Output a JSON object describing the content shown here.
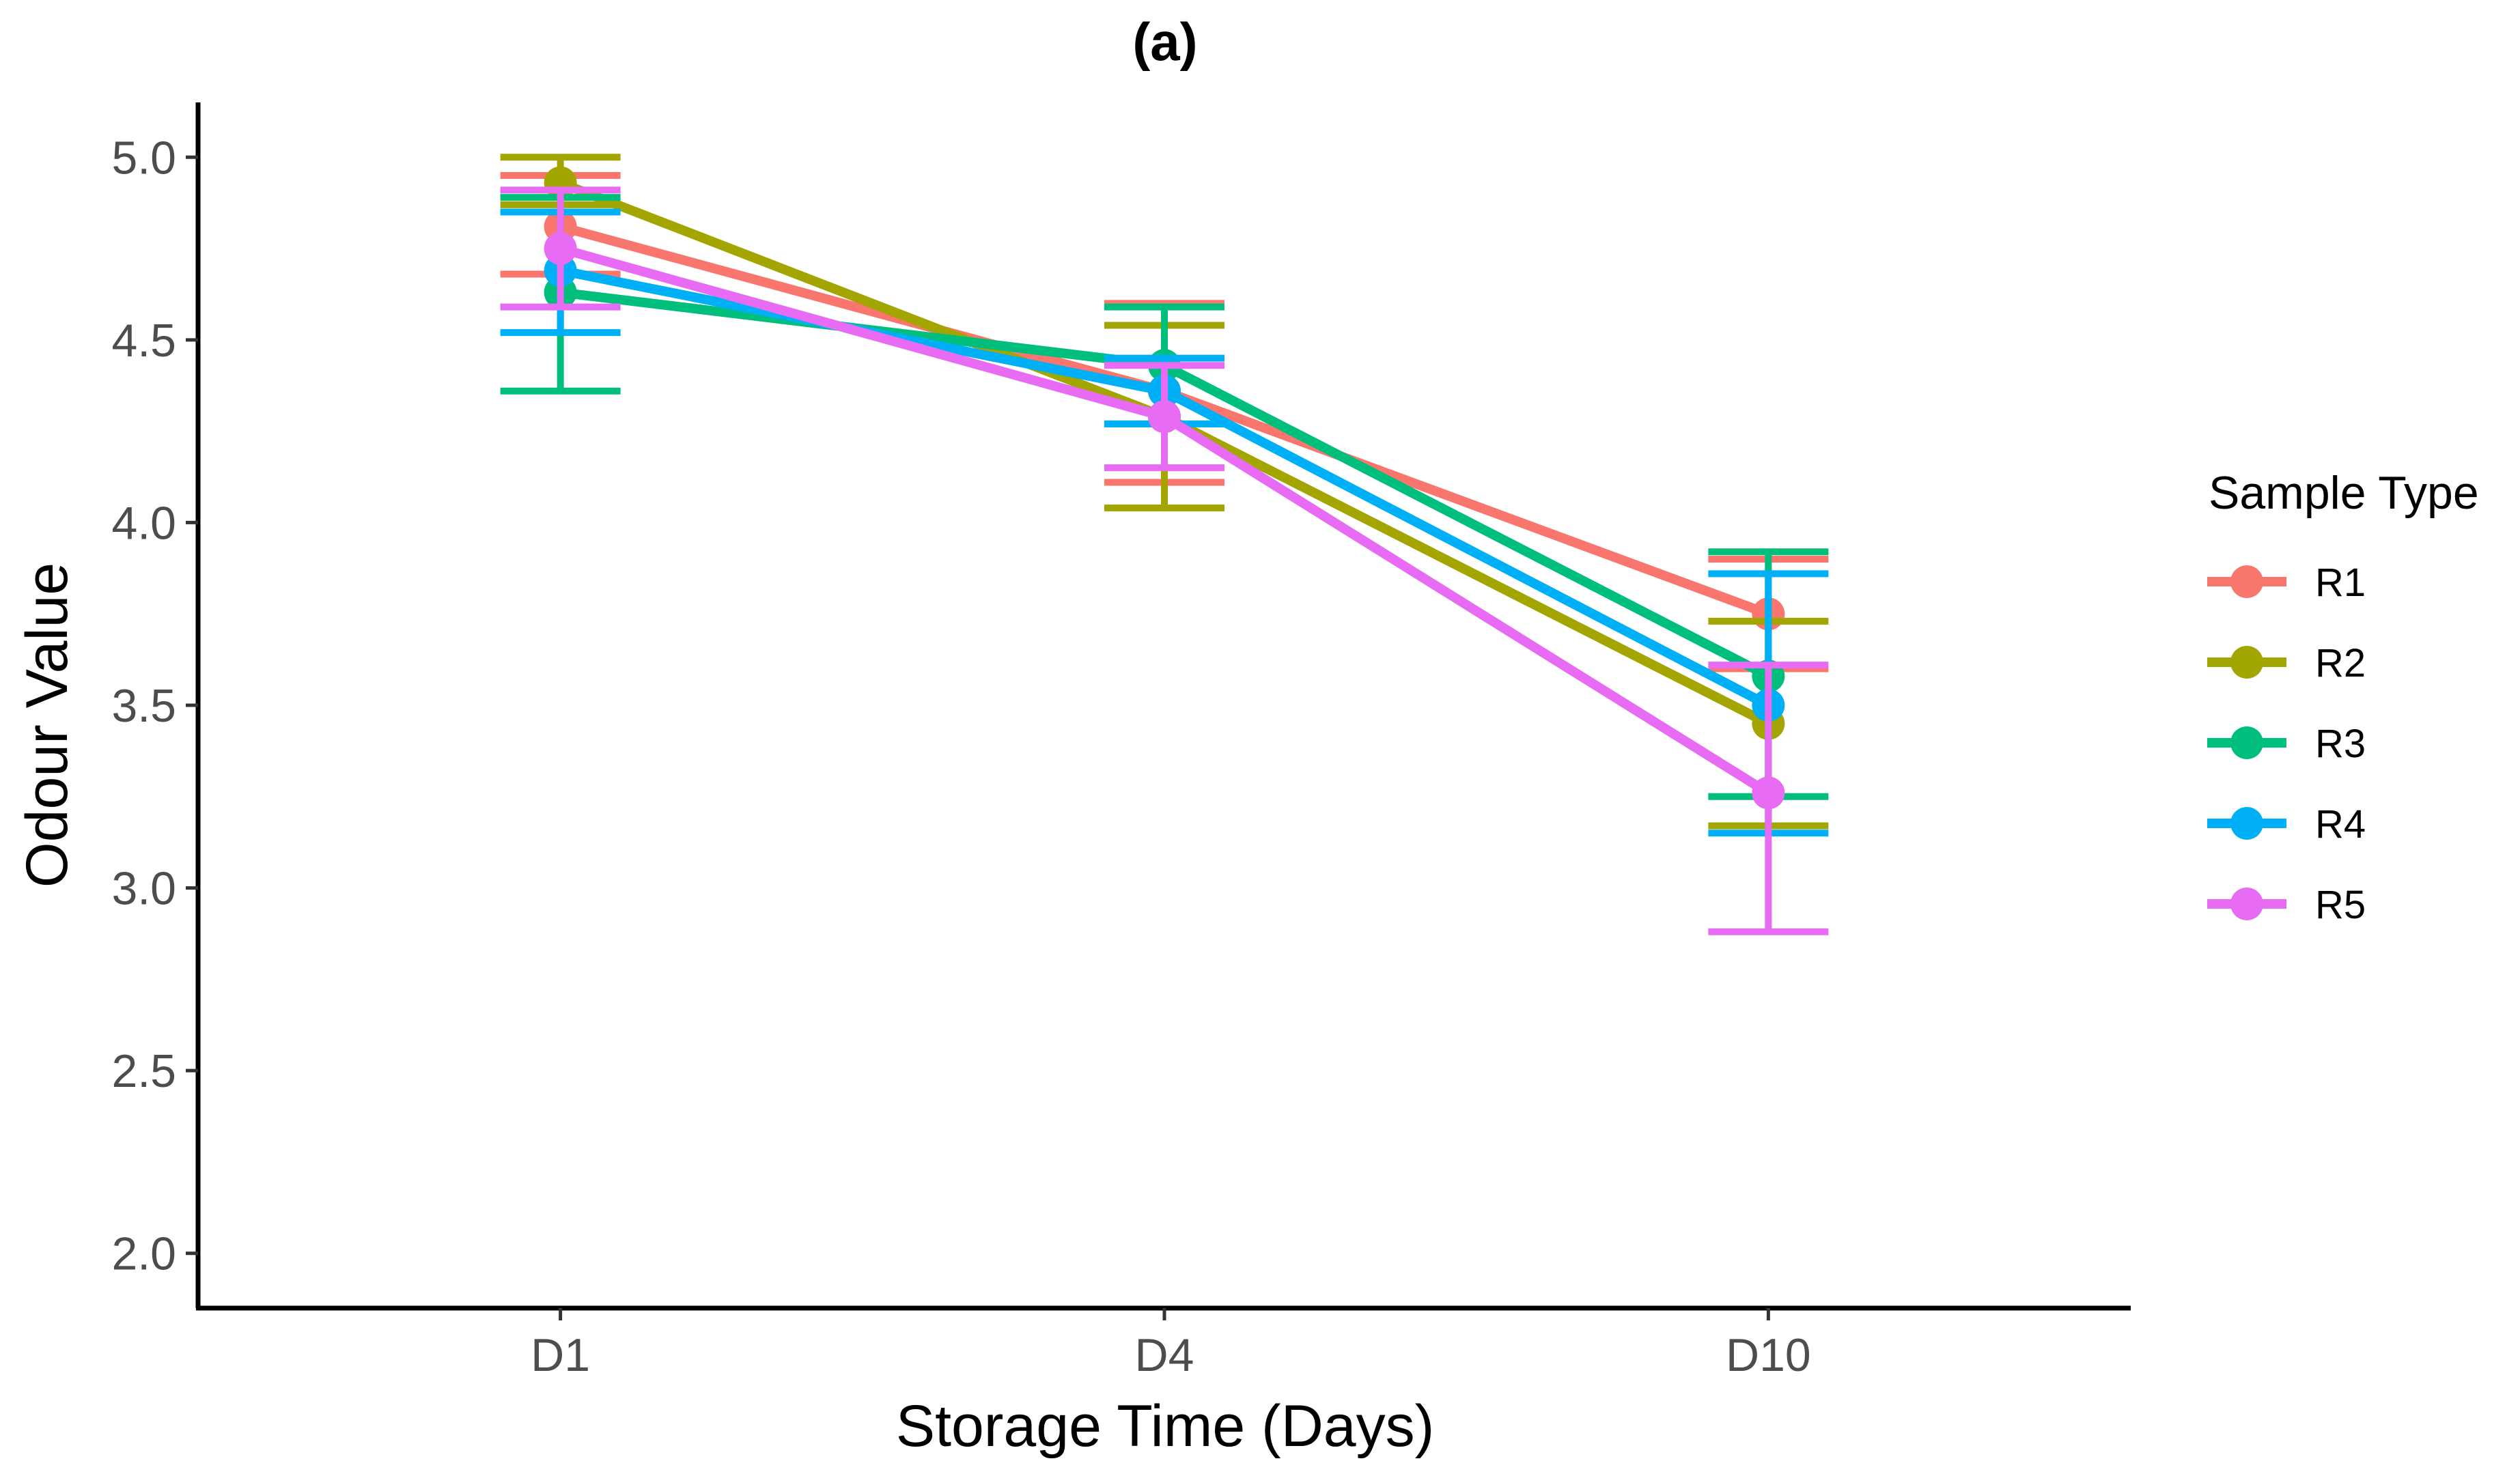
{
  "chart_data": {
    "type": "line",
    "title": "(a)",
    "xlabel": "Storage Time (Days)",
    "ylabel": "Odour Value",
    "categories": [
      "D1",
      "D4",
      "D10"
    ],
    "ylim": [
      1.85,
      5.15
    ],
    "yticks": [
      2.0,
      2.5,
      3.0,
      3.5,
      4.0,
      4.5,
      5.0
    ],
    "ytick_labels": [
      "2.0",
      "2.5",
      "3.0",
      "3.5",
      "4.0",
      "4.5",
      "5.0"
    ],
    "grid": false,
    "legend": {
      "title": "Sample Type",
      "position": "right"
    },
    "series": [
      {
        "name": "R1",
        "color": "#F8766D",
        "values": [
          4.81,
          4.36,
          3.75
        ],
        "err_low": [
          4.68,
          4.11,
          3.6
        ],
        "err_high": [
          4.95,
          4.6,
          3.9
        ]
      },
      {
        "name": "R2",
        "color": "#A3A500",
        "values": [
          4.93,
          4.29,
          3.45
        ],
        "err_low": [
          4.87,
          4.04,
          3.17
        ],
        "err_high": [
          5.0,
          4.54,
          3.73
        ]
      },
      {
        "name": "R3",
        "color": "#00BF7D",
        "values": [
          4.63,
          4.43,
          3.58
        ],
        "err_low": [
          4.36,
          4.27,
          3.25
        ],
        "err_high": [
          4.89,
          4.59,
          3.92
        ]
      },
      {
        "name": "R4",
        "color": "#00B0F6",
        "values": [
          4.69,
          4.36,
          3.5
        ],
        "err_low": [
          4.52,
          4.27,
          3.15
        ],
        "err_high": [
          4.85,
          4.45,
          3.86
        ]
      },
      {
        "name": "R5",
        "color": "#E76BF3",
        "values": [
          4.75,
          4.29,
          3.26
        ],
        "err_low": [
          4.59,
          4.15,
          2.88
        ],
        "err_high": [
          4.91,
          4.43,
          3.61
        ]
      }
    ]
  }
}
